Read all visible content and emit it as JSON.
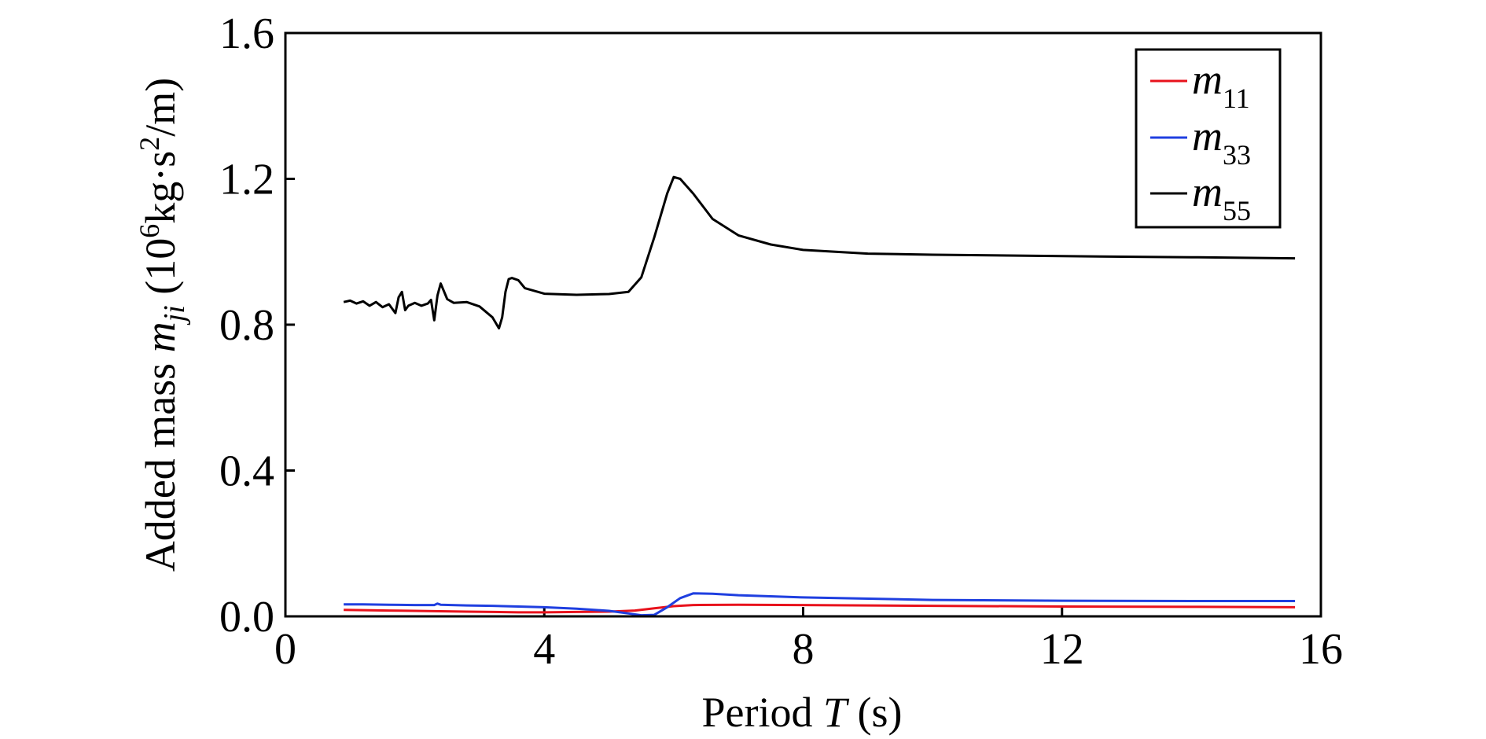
{
  "chart_data": {
    "type": "line",
    "title": "",
    "xlabel": {
      "prefix": "Period ",
      "var": "T",
      "suffix": " (s)"
    },
    "ylabel": {
      "prefix": "Added mass ",
      "var": "m",
      "sub": "ji",
      "unit_a": " (10",
      "unit_sup1": "6",
      "unit_b": "kg·s",
      "unit_sup2": "2",
      "unit_c": "/m)"
    },
    "xlim": [
      0,
      16
    ],
    "ylim": [
      0,
      1.6
    ],
    "xticks": [
      0,
      4,
      8,
      12,
      16
    ],
    "xtick_labels": [
      "0",
      "4",
      "8",
      "12",
      "16"
    ],
    "yticks": [
      0,
      0.4,
      0.8,
      1.2,
      1.6
    ],
    "ytick_labels": [
      "0.0",
      "0.4",
      "0.8",
      "1.2",
      "1.6"
    ],
    "grid": false,
    "legend_position": "top-right",
    "series": [
      {
        "name": "m11",
        "name_var": "m",
        "name_sub": "11",
        "color": "#e8121c",
        "points": [
          [
            0.9,
            0.018
          ],
          [
            1.2,
            0.017
          ],
          [
            1.6,
            0.016
          ],
          [
            2.0,
            0.015
          ],
          [
            2.4,
            0.014
          ],
          [
            2.8,
            0.013
          ],
          [
            3.2,
            0.012
          ],
          [
            3.6,
            0.011
          ],
          [
            4.0,
            0.011
          ],
          [
            4.5,
            0.012
          ],
          [
            5.0,
            0.013
          ],
          [
            5.4,
            0.016
          ],
          [
            5.7,
            0.022
          ],
          [
            6.0,
            0.028
          ],
          [
            6.3,
            0.031
          ],
          [
            7.0,
            0.032
          ],
          [
            8.0,
            0.031
          ],
          [
            10.0,
            0.029
          ],
          [
            12.0,
            0.027
          ],
          [
            14.0,
            0.026
          ],
          [
            15.6,
            0.025
          ]
        ]
      },
      {
        "name": "m33",
        "name_var": "m",
        "name_sub": "33",
        "color": "#1f3fe0",
        "points": [
          [
            0.9,
            0.033
          ],
          [
            1.2,
            0.033
          ],
          [
            1.6,
            0.032
          ],
          [
            2.0,
            0.031
          ],
          [
            2.3,
            0.031
          ],
          [
            2.35,
            0.035
          ],
          [
            2.4,
            0.032
          ],
          [
            2.8,
            0.03
          ],
          [
            3.2,
            0.029
          ],
          [
            3.6,
            0.027
          ],
          [
            4.0,
            0.025
          ],
          [
            4.5,
            0.021
          ],
          [
            5.0,
            0.015
          ],
          [
            5.3,
            0.008
          ],
          [
            5.5,
            0.003
          ],
          [
            5.7,
            0.004
          ],
          [
            5.9,
            0.025
          ],
          [
            6.1,
            0.05
          ],
          [
            6.3,
            0.063
          ],
          [
            6.6,
            0.062
          ],
          [
            7.0,
            0.058
          ],
          [
            8.0,
            0.052
          ],
          [
            10.0,
            0.045
          ],
          [
            12.0,
            0.043
          ],
          [
            14.0,
            0.042
          ],
          [
            15.6,
            0.042
          ]
        ]
      },
      {
        "name": "m55",
        "name_var": "m",
        "name_sub": "55",
        "color": "#000000",
        "points": [
          [
            0.9,
            0.862
          ],
          [
            1.0,
            0.866
          ],
          [
            1.1,
            0.858
          ],
          [
            1.2,
            0.864
          ],
          [
            1.3,
            0.852
          ],
          [
            1.4,
            0.862
          ],
          [
            1.5,
            0.848
          ],
          [
            1.6,
            0.856
          ],
          [
            1.7,
            0.832
          ],
          [
            1.75,
            0.875
          ],
          [
            1.8,
            0.89
          ],
          [
            1.85,
            0.84
          ],
          [
            1.9,
            0.852
          ],
          [
            2.0,
            0.86
          ],
          [
            2.1,
            0.852
          ],
          [
            2.2,
            0.858
          ],
          [
            2.25,
            0.868
          ],
          [
            2.3,
            0.812
          ],
          [
            2.35,
            0.88
          ],
          [
            2.4,
            0.913
          ],
          [
            2.5,
            0.87
          ],
          [
            2.6,
            0.86
          ],
          [
            2.8,
            0.862
          ],
          [
            3.0,
            0.85
          ],
          [
            3.2,
            0.82
          ],
          [
            3.3,
            0.79
          ],
          [
            3.35,
            0.82
          ],
          [
            3.4,
            0.89
          ],
          [
            3.45,
            0.925
          ],
          [
            3.5,
            0.928
          ],
          [
            3.6,
            0.922
          ],
          [
            3.7,
            0.9
          ],
          [
            4.0,
            0.885
          ],
          [
            4.5,
            0.882
          ],
          [
            5.0,
            0.884
          ],
          [
            5.3,
            0.89
          ],
          [
            5.5,
            0.93
          ],
          [
            5.7,
            1.04
          ],
          [
            5.9,
            1.16
          ],
          [
            6.0,
            1.205
          ],
          [
            6.1,
            1.2
          ],
          [
            6.3,
            1.16
          ],
          [
            6.6,
            1.09
          ],
          [
            7.0,
            1.045
          ],
          [
            7.5,
            1.02
          ],
          [
            8.0,
            1.005
          ],
          [
            9.0,
            0.995
          ],
          [
            10.0,
            0.992
          ],
          [
            12.0,
            0.988
          ],
          [
            14.0,
            0.985
          ],
          [
            15.6,
            0.982
          ]
        ]
      }
    ]
  }
}
